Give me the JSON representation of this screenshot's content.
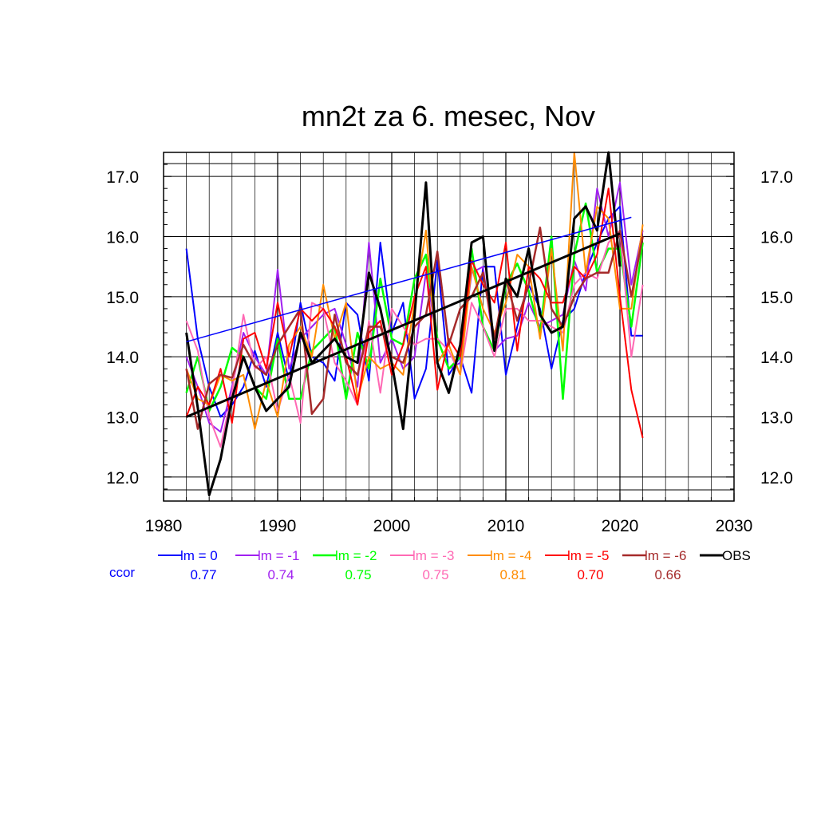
{
  "chart_data": {
    "type": "line",
    "title": "mn2t za 6. mesec, Nov",
    "xlabel": "",
    "ylabel": "",
    "xlim": [
      1980,
      2030
    ],
    "ylim": [
      11.6,
      17.4
    ],
    "x_ticks": [
      1980,
      1990,
      2000,
      2010,
      2020,
      2030
    ],
    "x_tick_labels": [
      "1980",
      "1990",
      "2000",
      "2010",
      "2020",
      "2030"
    ],
    "y_ticks": [
      12.0,
      13.0,
      14.0,
      15.0,
      16.0,
      17.0
    ],
    "y_tick_labels": [
      "12.0",
      "13.0",
      "14.0",
      "15.0",
      "16.0",
      "17.0"
    ],
    "grid": true,
    "legend_placement": "bottom",
    "ccor_label": "ccor",
    "ccor_color": "#0000ff",
    "series": [
      {
        "name": "lm = 0",
        "color": "#0000ff",
        "width": 2,
        "ccor": "0.77",
        "x_start": 1982,
        "values": [
          15.8,
          14.3,
          13.5,
          13.0,
          13.2,
          13.5,
          14.1,
          13.5,
          14.4,
          13.6,
          14.9,
          14.0,
          13.9,
          13.6,
          14.9,
          14.7,
          13.6,
          15.9,
          14.4,
          14.9,
          13.3,
          13.8,
          15.6,
          13.7,
          14.0,
          13.4,
          15.5,
          15.5,
          13.7,
          14.5,
          15.2,
          14.8,
          13.8,
          14.6,
          14.8,
          15.4,
          15.9,
          16.3,
          16.5,
          14.35,
          14.35
        ]
      },
      {
        "name": "lm = -1",
        "color": "#a020f0",
        "width": 2,
        "ccor": "0.74",
        "x_start": 1982,
        "values": [
          14.0,
          13.5,
          12.9,
          12.75,
          13.5,
          14.4,
          14.0,
          13.7,
          15.45,
          13.8,
          14.3,
          14.5,
          14.7,
          14.8,
          14.2,
          13.5,
          15.9,
          13.9,
          14.3,
          13.8,
          14.0,
          15.4,
          14.3,
          13.8,
          13.9,
          15.4,
          15.5,
          14.1,
          14.3,
          14.35,
          14.9,
          14.5,
          14.6,
          14.7,
          15.6,
          15.1,
          16.8,
          16.0,
          16.9,
          15.2,
          16.1
        ]
      },
      {
        "name": "lm = -2",
        "color": "#00ff00",
        "width": 2.5,
        "ccor": "0.75",
        "x_start": 1982,
        "values": [
          13.4,
          14.0,
          13.1,
          13.5,
          14.15,
          14.0,
          13.5,
          13.3,
          14.3,
          13.3,
          13.3,
          14.1,
          14.3,
          14.5,
          13.3,
          14.4,
          13.8,
          15.3,
          14.3,
          14.2,
          15.3,
          15.7,
          14.3,
          13.8,
          14.0,
          15.8,
          14.5,
          14.1,
          15.2,
          15.55,
          15.1,
          14.4,
          16.0,
          13.3,
          15.7,
          16.55,
          15.4,
          15.8,
          15.8,
          14.5,
          15.9
        ]
      },
      {
        "name": "lm = -3",
        "color": "#ff69b4",
        "width": 2,
        "ccor": "0.75",
        "x_start": 1982,
        "values": [
          14.6,
          14.1,
          13.0,
          12.5,
          13.4,
          14.7,
          13.8,
          14.0,
          13.1,
          13.7,
          12.9,
          14.9,
          14.8,
          13.9,
          13.6,
          13.2,
          14.6,
          13.4,
          14.8,
          14.5,
          14.2,
          14.3,
          14.3,
          14.1,
          13.7,
          14.9,
          14.5,
          14.0,
          14.8,
          14.8,
          14.6,
          14.6,
          14.5,
          14.4,
          15.2,
          15.4,
          15.3,
          15.9,
          16.1,
          14.0,
          15.2
        ]
      },
      {
        "name": "lm = -4",
        "color": "#ff8c00",
        "width": 2,
        "ccor": "0.81",
        "x_start": 1982,
        "values": [
          13.8,
          13.3,
          13.2,
          13.7,
          13.6,
          13.7,
          12.8,
          13.6,
          13.0,
          14.2,
          14.5,
          14.0,
          15.2,
          14.3,
          14.9,
          13.3,
          14.0,
          13.8,
          13.9,
          13.7,
          14.9,
          16.1,
          13.9,
          14.2,
          13.7,
          15.5,
          14.8,
          14.4,
          14.9,
          15.7,
          15.5,
          14.3,
          15.8,
          14.1,
          17.4,
          15.4,
          16.5,
          16.3,
          14.8,
          14.8,
          16.2
        ]
      },
      {
        "name": "lm = -5",
        "color": "#ff0000",
        "width": 2,
        "ccor": "0.70",
        "x_start": 1982,
        "values": [
          13.0,
          13.5,
          13.2,
          13.8,
          12.9,
          14.3,
          14.4,
          13.8,
          14.9,
          14.0,
          14.8,
          14.6,
          14.8,
          14.5,
          14.0,
          13.2,
          14.4,
          14.6,
          13.7,
          14.2,
          15.0,
          15.5,
          13.45,
          14.3,
          14.0,
          15.6,
          15.2,
          14.9,
          15.9,
          14.1,
          15.5,
          15.3,
          14.9,
          14.9,
          15.5,
          15.3,
          15.7,
          16.8,
          15.0,
          13.45,
          12.65
        ]
      },
      {
        "name": "lm = -6",
        "color": "#a52a2a",
        "width": 2.5,
        "ccor": "0.66",
        "x_start": 1982,
        "values": [
          13.8,
          12.8,
          13.55,
          13.7,
          13.65,
          14.2,
          13.85,
          13.7,
          14.2,
          14.5,
          14.8,
          13.05,
          13.3,
          14.7,
          13.9,
          13.7,
          14.5,
          14.5,
          14.0,
          13.9,
          14.5,
          14.7,
          15.75,
          14.2,
          14.8,
          15.0,
          15.4,
          14.3,
          15.3,
          14.6,
          15.2,
          16.15,
          14.8,
          14.5,
          15.0,
          15.3,
          15.4,
          15.4,
          16.1,
          15.0,
          16.0
        ]
      },
      {
        "name": "OBS",
        "color": "#000000",
        "width": 3,
        "ccor": "",
        "x_start": 1982,
        "values": [
          14.4,
          13.15,
          11.7,
          12.3,
          13.3,
          14.0,
          13.5,
          13.1,
          13.3,
          13.5,
          14.4,
          13.9,
          14.1,
          14.3,
          14.0,
          13.9,
          15.4,
          14.8,
          13.9,
          12.8,
          14.7,
          16.9,
          13.9,
          13.4,
          14.2,
          15.9,
          16.0,
          14.1,
          15.3,
          15.0,
          15.8,
          14.7,
          14.4,
          14.5,
          16.3,
          16.5,
          16.1,
          17.4,
          15.5
        ]
      }
    ],
    "trend_lines": [
      {
        "name": "lm = 0 trend",
        "color": "#0000ff",
        "width": 1.5,
        "x": [
          1982,
          2021
        ],
        "y": [
          14.25,
          16.32
        ]
      },
      {
        "name": "OBS trend",
        "color": "#000000",
        "width": 3,
        "x": [
          1982,
          2020
        ],
        "y": [
          13.0,
          16.05
        ]
      }
    ]
  }
}
